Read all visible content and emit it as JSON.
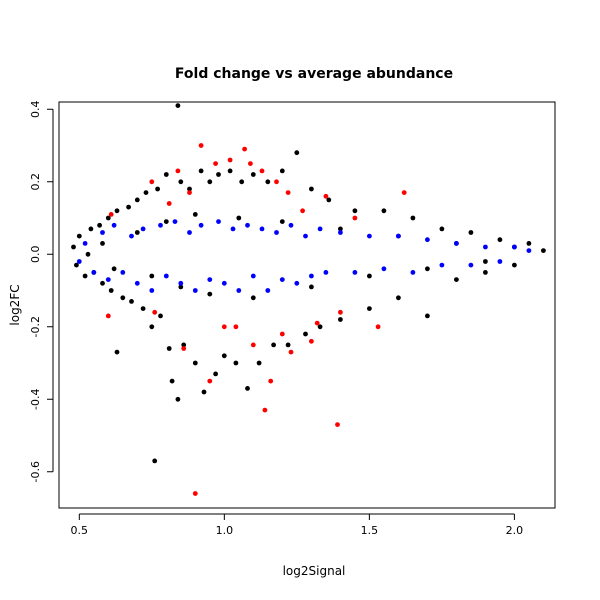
{
  "chart_data": {
    "type": "scatter",
    "title": "Fold change vs average abundance",
    "xlabel": "log2Signal",
    "ylabel": "log2FC",
    "xlim": [
      0.43,
      2.14
    ],
    "ylim": [
      -0.7,
      0.42
    ],
    "xticks": [
      0.5,
      1.0,
      1.5,
      2.0
    ],
    "xtick_labels": [
      "0.5",
      "1.0",
      "1.5",
      "2.0"
    ],
    "yticks": [
      -0.6,
      -0.4,
      -0.2,
      0.0,
      0.2,
      0.4
    ],
    "ytick_labels": [
      "-0.6",
      "-0.4",
      "-0.2",
      "0.0",
      "0.2",
      "0.4"
    ],
    "grid": false,
    "legend": "none",
    "colors": {
      "all": "#000000",
      "blue": "#0000ff",
      "red": "#ff0000"
    },
    "series": [
      {
        "color": "#000000",
        "points": [
          [
            0.48,
            0.02
          ],
          [
            0.49,
            -0.03
          ],
          [
            0.5,
            0.05
          ],
          [
            0.52,
            -0.06
          ],
          [
            0.54,
            0.07
          ],
          [
            0.55,
            -0.05
          ],
          [
            0.57,
            0.08
          ],
          [
            0.58,
            -0.08
          ],
          [
            0.6,
            0.1
          ],
          [
            0.61,
            -0.1
          ],
          [
            0.63,
            0.12
          ],
          [
            0.63,
            -0.27
          ],
          [
            0.65,
            -0.12
          ],
          [
            0.67,
            0.13
          ],
          [
            0.68,
            -0.13
          ],
          [
            0.7,
            0.15
          ],
          [
            0.72,
            -0.15
          ],
          [
            0.73,
            0.17
          ],
          [
            0.75,
            -0.2
          ],
          [
            0.76,
            -0.57
          ],
          [
            0.77,
            0.18
          ],
          [
            0.78,
            -0.17
          ],
          [
            0.8,
            0.22
          ],
          [
            0.81,
            -0.26
          ],
          [
            0.82,
            -0.35
          ],
          [
            0.84,
            0.41
          ],
          [
            0.84,
            -0.4
          ],
          [
            0.85,
            0.2
          ],
          [
            0.86,
            -0.25
          ],
          [
            0.88,
            0.18
          ],
          [
            0.9,
            -0.3
          ],
          [
            0.92,
            0.23
          ],
          [
            0.93,
            -0.38
          ],
          [
            0.95,
            0.2
          ],
          [
            0.97,
            -0.33
          ],
          [
            0.98,
            0.22
          ],
          [
            1.0,
            -0.28
          ],
          [
            1.02,
            0.23
          ],
          [
            1.04,
            -0.3
          ],
          [
            1.06,
            0.2
          ],
          [
            1.08,
            -0.37
          ],
          [
            1.1,
            0.22
          ],
          [
            1.12,
            -0.3
          ],
          [
            1.15,
            0.2
          ],
          [
            1.17,
            -0.25
          ],
          [
            1.2,
            0.23
          ],
          [
            1.22,
            -0.25
          ],
          [
            1.25,
            0.28
          ],
          [
            1.28,
            -0.22
          ],
          [
            1.3,
            0.18
          ],
          [
            1.33,
            -0.2
          ],
          [
            1.36,
            0.15
          ],
          [
            1.4,
            -0.18
          ],
          [
            1.45,
            0.12
          ],
          [
            1.5,
            -0.15
          ],
          [
            1.55,
            0.12
          ],
          [
            1.6,
            -0.12
          ],
          [
            1.65,
            0.1
          ],
          [
            1.7,
            -0.17
          ],
          [
            1.75,
            0.07
          ],
          [
            1.8,
            -0.07
          ],
          [
            1.85,
            0.06
          ],
          [
            1.9,
            -0.05
          ],
          [
            1.95,
            0.04
          ],
          [
            2.0,
            -0.03
          ],
          [
            2.05,
            0.03
          ],
          [
            2.1,
            0.01
          ],
          [
            0.53,
            0.0
          ],
          [
            0.58,
            0.03
          ],
          [
            0.62,
            -0.04
          ],
          [
            0.7,
            0.06
          ],
          [
            0.75,
            -0.06
          ],
          [
            0.8,
            0.09
          ],
          [
            0.85,
            -0.09
          ],
          [
            0.9,
            0.11
          ],
          [
            0.95,
            -0.11
          ],
          [
            1.05,
            0.1
          ],
          [
            1.1,
            -0.12
          ],
          [
            1.2,
            0.09
          ],
          [
            1.3,
            -0.09
          ],
          [
            1.4,
            0.07
          ],
          [
            1.5,
            -0.06
          ],
          [
            1.6,
            0.05
          ],
          [
            1.7,
            -0.04
          ],
          [
            1.8,
            0.03
          ],
          [
            1.9,
            -0.02
          ],
          [
            2.0,
            0.02
          ]
        ]
      },
      {
        "color": "#0000ff",
        "points": [
          [
            0.5,
            -0.02
          ],
          [
            0.52,
            0.03
          ],
          [
            0.55,
            -0.05
          ],
          [
            0.58,
            0.06
          ],
          [
            0.6,
            -0.07
          ],
          [
            0.62,
            0.08
          ],
          [
            0.65,
            -0.05
          ],
          [
            0.68,
            0.05
          ],
          [
            0.7,
            -0.08
          ],
          [
            0.72,
            0.07
          ],
          [
            0.75,
            -0.1
          ],
          [
            0.78,
            0.08
          ],
          [
            0.8,
            -0.06
          ],
          [
            0.83,
            0.09
          ],
          [
            0.85,
            -0.08
          ],
          [
            0.88,
            0.06
          ],
          [
            0.9,
            -0.1
          ],
          [
            0.92,
            0.08
          ],
          [
            0.95,
            -0.07
          ],
          [
            0.98,
            0.09
          ],
          [
            1.0,
            -0.08
          ],
          [
            1.03,
            0.07
          ],
          [
            1.05,
            -0.1
          ],
          [
            1.08,
            0.08
          ],
          [
            1.1,
            -0.06
          ],
          [
            1.13,
            0.07
          ],
          [
            1.15,
            -0.1
          ],
          [
            1.18,
            0.06
          ],
          [
            1.2,
            -0.07
          ],
          [
            1.23,
            0.08
          ],
          [
            1.25,
            -0.08
          ],
          [
            1.28,
            0.05
          ],
          [
            1.3,
            -0.06
          ],
          [
            1.33,
            0.07
          ],
          [
            1.35,
            -0.05
          ],
          [
            1.4,
            0.06
          ],
          [
            1.45,
            -0.05
          ],
          [
            1.5,
            0.05
          ],
          [
            1.55,
            -0.04
          ],
          [
            1.6,
            0.05
          ],
          [
            1.65,
            -0.05
          ],
          [
            1.7,
            0.04
          ],
          [
            1.75,
            -0.03
          ],
          [
            1.8,
            0.03
          ],
          [
            1.85,
            -0.03
          ],
          [
            1.9,
            0.02
          ],
          [
            1.95,
            -0.02
          ],
          [
            2.0,
            0.02
          ],
          [
            2.05,
            0.01
          ]
        ]
      },
      {
        "color": "#ff0000",
        "points": [
          [
            0.6,
            -0.17
          ],
          [
            0.61,
            0.11
          ],
          [
            0.75,
            0.2
          ],
          [
            0.76,
            -0.16
          ],
          [
            0.81,
            0.14
          ],
          [
            0.84,
            0.23
          ],
          [
            0.86,
            -0.26
          ],
          [
            0.88,
            0.17
          ],
          [
            0.9,
            -0.66
          ],
          [
            0.92,
            0.3
          ],
          [
            0.95,
            -0.35
          ],
          [
            0.97,
            0.25
          ],
          [
            1.0,
            -0.2
          ],
          [
            1.02,
            0.26
          ],
          [
            1.04,
            -0.2
          ],
          [
            1.07,
            0.29
          ],
          [
            1.09,
            0.25
          ],
          [
            1.1,
            -0.25
          ],
          [
            1.13,
            0.23
          ],
          [
            1.14,
            -0.43
          ],
          [
            1.16,
            -0.35
          ],
          [
            1.18,
            0.2
          ],
          [
            1.2,
            -0.22
          ],
          [
            1.22,
            0.17
          ],
          [
            1.23,
            -0.27
          ],
          [
            1.27,
            0.12
          ],
          [
            1.3,
            -0.24
          ],
          [
            1.32,
            -0.19
          ],
          [
            1.35,
            0.16
          ],
          [
            1.39,
            -0.47
          ],
          [
            1.4,
            -0.16
          ],
          [
            1.45,
            0.1
          ],
          [
            1.53,
            -0.2
          ],
          [
            1.62,
            0.17
          ]
        ]
      }
    ]
  }
}
